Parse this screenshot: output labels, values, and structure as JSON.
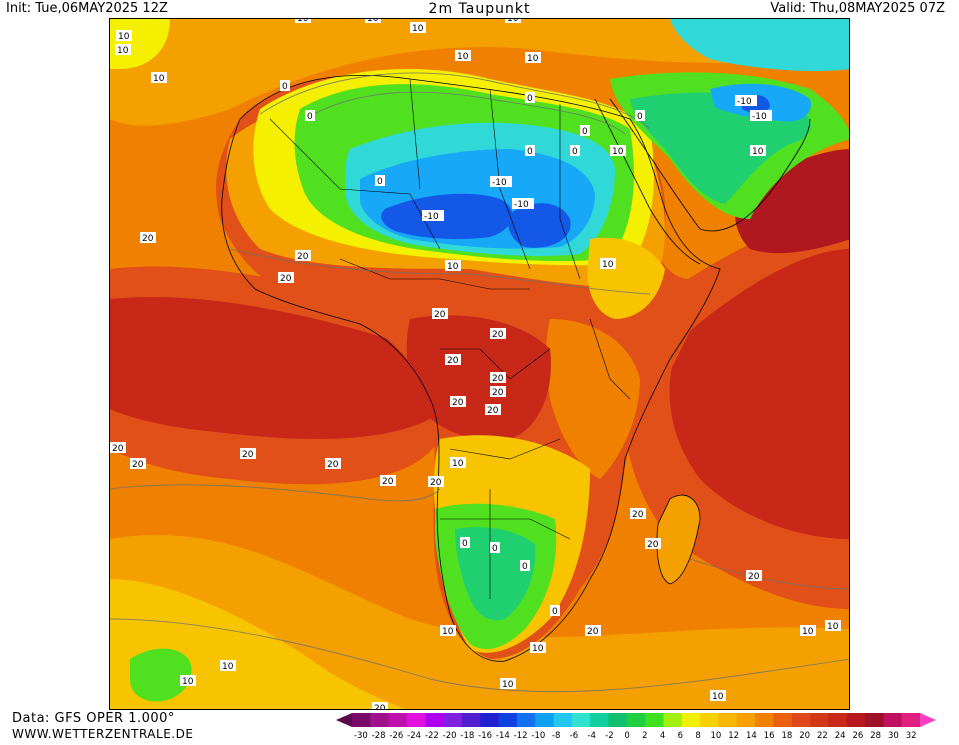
{
  "header": {
    "init": "Init: Tue,06MAY2025 12Z",
    "title": "2m Taupunkt",
    "valid": "Valid: Thu,08MAY2025 07Z"
  },
  "footer": {
    "source": "Data: GFS OPER 1.000°",
    "website": "WWW.WETTERZENTRALE.DE"
  },
  "legend": {
    "ticks": [
      "-30",
      "-28",
      "-26",
      "-24",
      "-22",
      "-20",
      "-18",
      "-16",
      "-14",
      "-12",
      "-10",
      "-8",
      "-6",
      "-4",
      "-2",
      "0",
      "2",
      "4",
      "6",
      "8",
      "10",
      "12",
      "14",
      "16",
      "18",
      "20",
      "22",
      "24",
      "26",
      "28",
      "30",
      "32"
    ],
    "colors": [
      "#5a0a4a",
      "#7a0a6a",
      "#a0108a",
      "#c010b0",
      "#e010e0",
      "#b000f0",
      "#8020e0",
      "#5020d0",
      "#2020d0",
      "#1040e0",
      "#1470f0",
      "#10a0f0",
      "#20c8f0",
      "#30e0d0",
      "#10d0a0",
      "#10c070",
      "#20d040",
      "#40e020",
      "#a0f010",
      "#f0f000",
      "#f8d000",
      "#f8b800",
      "#f8a000",
      "#f08000",
      "#e86010",
      "#e04818",
      "#d03818",
      "#c82818",
      "#b81820",
      "#a01028",
      "#c01060",
      "#e02080",
      "#ff40c0"
    ]
  },
  "colors": {
    "c_m10": "#1458e8",
    "c_m6": "#18a8f8",
    "c_m2": "#30d8d8",
    "c_0": "#20d070",
    "c_4": "#50e020",
    "c_8": "#f4f000",
    "c_12": "#f8c400",
    "c_16": "#f4a000",
    "c_18": "#f08000",
    "c_22": "#e05018",
    "c_26": "#c82818",
    "c_28": "#b01820"
  },
  "labels": [
    {
      "text": "10"
    },
    {
      "text": "10"
    },
    {
      "text": "10"
    },
    {
      "text": "10"
    },
    {
      "text": "10"
    },
    {
      "text": "10"
    },
    {
      "text": "10"
    },
    {
      "text": "10"
    },
    {
      "text": "10"
    },
    {
      "text": "0"
    },
    {
      "text": "0"
    },
    {
      "text": "0"
    },
    {
      "text": "-10"
    },
    {
      "text": "-10"
    },
    {
      "text": "-10"
    },
    {
      "text": "-10"
    },
    {
      "text": "-10"
    },
    {
      "text": "0"
    },
    {
      "text": "0"
    },
    {
      "text": "0"
    },
    {
      "text": "20"
    },
    {
      "text": "20"
    },
    {
      "text": "20"
    },
    {
      "text": "20"
    },
    {
      "text": "10"
    },
    {
      "text": "10"
    },
    {
      "text": "20"
    },
    {
      "text": "20"
    },
    {
      "text": "20"
    },
    {
      "text": "20"
    },
    {
      "text": "20"
    },
    {
      "text": "20"
    },
    {
      "text": "20"
    },
    {
      "text": "20"
    },
    {
      "text": "20"
    },
    {
      "text": "20"
    },
    {
      "text": "20"
    },
    {
      "text": "20"
    },
    {
      "text": "10"
    },
    {
      "text": "0"
    },
    {
      "text": "0"
    },
    {
      "text": "0"
    },
    {
      "text": "0"
    },
    {
      "text": "10"
    },
    {
      "text": "20"
    },
    {
      "text": "20"
    },
    {
      "text": "20"
    },
    {
      "text": "10"
    },
    {
      "text": "10"
    },
    {
      "text": "10"
    },
    {
      "text": "10"
    },
    {
      "text": "10"
    },
    {
      "text": "10"
    },
    {
      "text": "20"
    },
    {
      "text": "10"
    },
    {
      "text": "0"
    },
    {
      "text": "0"
    },
    {
      "text": "10"
    },
    {
      "text": "10"
    },
    {
      "text": "20"
    }
  ]
}
